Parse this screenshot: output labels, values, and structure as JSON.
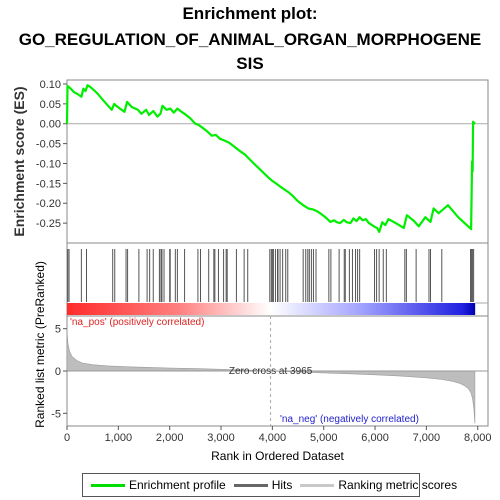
{
  "title_lines": [
    "Enrichment plot:",
    "GO_REGULATION_OF_ANIMAL_ORGAN_MORPHOGENE",
    "SIS"
  ],
  "legend": {
    "items": [
      {
        "label": "Enrichment profile",
        "color": "#00dd00"
      },
      {
        "label": "Hits",
        "color": "#666666"
      },
      {
        "label": "Ranking metric scores",
        "color": "#c8c8c8"
      }
    ]
  },
  "chart_data": {
    "type": "line",
    "es_panel": {
      "ylabel": "Enrichment score (ES)",
      "ylim": [
        -0.3,
        0.11
      ],
      "yticks": [
        0.1,
        0.05,
        0.0,
        -0.05,
        -0.1,
        -0.15,
        -0.2,
        -0.25
      ],
      "ytick_labels": [
        "0.10",
        "0.05",
        "0.00",
        "-0.05",
        "-0.10",
        "-0.15",
        "-0.20",
        "-0.25"
      ],
      "line_color": "#00ee00",
      "x": [
        0,
        10,
        60,
        130,
        200,
        280,
        320,
        360,
        400,
        460,
        520,
        600,
        700,
        800,
        870,
        920,
        960,
        1030,
        1120,
        1170,
        1260,
        1380,
        1450,
        1540,
        1600,
        1680,
        1760,
        1820,
        1860,
        1940,
        2010,
        2080,
        2150,
        2230,
        2300,
        2400,
        2500,
        2560,
        2640,
        2720,
        2820,
        2900,
        2980,
        3060,
        3160,
        3260,
        3360,
        3470,
        3560,
        3680,
        3800,
        3920,
        3990,
        4070,
        4150,
        4230,
        4310,
        4400,
        4500,
        4600,
        4700,
        4800,
        4870,
        4960,
        5050,
        5130,
        5200,
        5260,
        5320,
        5390,
        5450,
        5520,
        5580,
        5640,
        5700,
        5760,
        5820,
        5880,
        5940,
        6000,
        6040,
        6080,
        6140,
        6200,
        6260,
        6400,
        6560,
        6620,
        6760,
        6850,
        6980,
        7080,
        7140,
        7240,
        7420,
        7620,
        7870,
        7880,
        7890,
        7900,
        7910,
        7930,
        7950
      ],
      "y": [
        0.0,
        0.095,
        0.09,
        0.08,
        0.075,
        0.068,
        0.088,
        0.082,
        0.097,
        0.092,
        0.085,
        0.075,
        0.06,
        0.045,
        0.035,
        0.05,
        0.045,
        0.038,
        0.03,
        0.055,
        0.042,
        0.035,
        0.025,
        0.035,
        0.022,
        0.032,
        0.018,
        0.025,
        0.045,
        0.035,
        0.038,
        0.028,
        0.038,
        0.03,
        0.024,
        0.014,
        0.0,
        -0.003,
        -0.01,
        -0.018,
        -0.03,
        -0.028,
        -0.038,
        -0.042,
        -0.048,
        -0.058,
        -0.068,
        -0.078,
        -0.09,
        -0.105,
        -0.12,
        -0.135,
        -0.143,
        -0.15,
        -0.158,
        -0.165,
        -0.172,
        -0.182,
        -0.195,
        -0.205,
        -0.213,
        -0.216,
        -0.22,
        -0.228,
        -0.237,
        -0.247,
        -0.243,
        -0.248,
        -0.25,
        -0.242,
        -0.248,
        -0.25,
        -0.238,
        -0.245,
        -0.235,
        -0.243,
        -0.24,
        -0.25,
        -0.255,
        -0.26,
        -0.262,
        -0.272,
        -0.248,
        -0.255,
        -0.24,
        -0.25,
        -0.262,
        -0.23,
        -0.245,
        -0.258,
        -0.235,
        -0.247,
        -0.213,
        -0.225,
        -0.205,
        -0.235,
        -0.265,
        -0.18,
        -0.095,
        -0.12,
        0.005,
        0.002,
        0.0
      ]
    },
    "hits_panel": {
      "hit_ranks": [
        15,
        40,
        280,
        380,
        890,
        930,
        1150,
        1180,
        1400,
        1560,
        1610,
        1680,
        1800,
        1830,
        1850,
        1890,
        2000,
        2010,
        2110,
        2150,
        2290,
        2550,
        2600,
        2760,
        2860,
        2880,
        2950,
        3050,
        3100,
        3120,
        3300,
        3450,
        3520,
        3950,
        3980,
        4000,
        4020,
        4060,
        4100,
        4110,
        4150,
        4200,
        4260,
        4300,
        4600,
        4650,
        4690,
        4720,
        4760,
        4800,
        4850,
        5100,
        5140,
        5300,
        5400,
        5420,
        5500,
        5560,
        5620,
        5660,
        5700,
        5990,
        6030,
        6080,
        6160,
        6220,
        6580,
        6610,
        6800,
        7050,
        7080,
        7300,
        7860,
        7880,
        7900,
        7920
      ]
    },
    "ranked_panel": {
      "ylabel": "Ranked list metric (PreRanked)",
      "xlabel": "Rank in Ordered Dataset",
      "ylim": [
        -6.5,
        6.5
      ],
      "yticks": [
        5,
        0,
        -5
      ],
      "ytick_labels": [
        "5",
        "0",
        "-5"
      ],
      "xlim": [
        0,
        8200
      ],
      "xticks": [
        0,
        1000,
        2000,
        3000,
        4000,
        5000,
        6000,
        7000,
        8000
      ],
      "xtick_labels": [
        "0",
        "1,000",
        "2,000",
        "3,000",
        "4,000",
        "5,000",
        "6,000",
        "7,000",
        "8,000"
      ],
      "zero_cross": 3965,
      "zero_cross_label": "Zero cross at 3965",
      "pos_label": "'na_pos' (positively correlated)",
      "neg_label": "'na_neg' (negatively correlated)",
      "metric_x": [
        0,
        5,
        20,
        50,
        100,
        200,
        300,
        500,
        800,
        1200,
        1600,
        2000,
        2500,
        3000,
        3500,
        3965,
        4500,
        5000,
        5500,
        6000,
        6500,
        7000,
        7300,
        7500,
        7650,
        7750,
        7820,
        7870,
        7900,
        7925,
        7945
      ],
      "metric_y": [
        5.2,
        4.2,
        3.2,
        2.3,
        1.7,
        1.2,
        0.95,
        0.75,
        0.6,
        0.5,
        0.42,
        0.36,
        0.28,
        0.2,
        0.12,
        0.0,
        -0.12,
        -0.22,
        -0.33,
        -0.45,
        -0.6,
        -0.8,
        -1.0,
        -1.2,
        -1.45,
        -1.75,
        -2.1,
        -2.6,
        -3.3,
        -4.5,
        -6.2
      ]
    }
  }
}
